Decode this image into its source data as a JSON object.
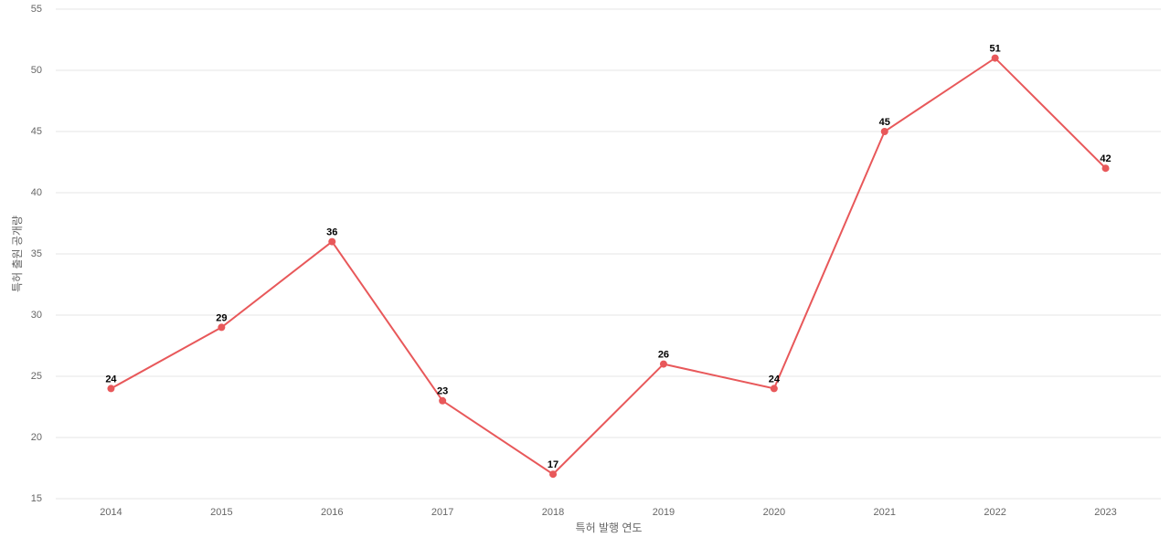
{
  "chart_data": {
    "type": "line",
    "x_label": "특허 발행 연도",
    "y_label": "특허 출원 공개량",
    "categories": [
      "2014",
      "2015",
      "2016",
      "2017",
      "2018",
      "2019",
      "2020",
      "2021",
      "2022",
      "2023"
    ],
    "series": [
      {
        "color": "#e8585a",
        "values": [
          24,
          29,
          36,
          23,
          17,
          26,
          24,
          45,
          51,
          42
        ]
      }
    ],
    "ylim": [
      15,
      55
    ],
    "yticks": [
      15,
      20,
      25,
      30,
      35,
      40,
      45,
      50,
      55
    ],
    "grid": true
  }
}
